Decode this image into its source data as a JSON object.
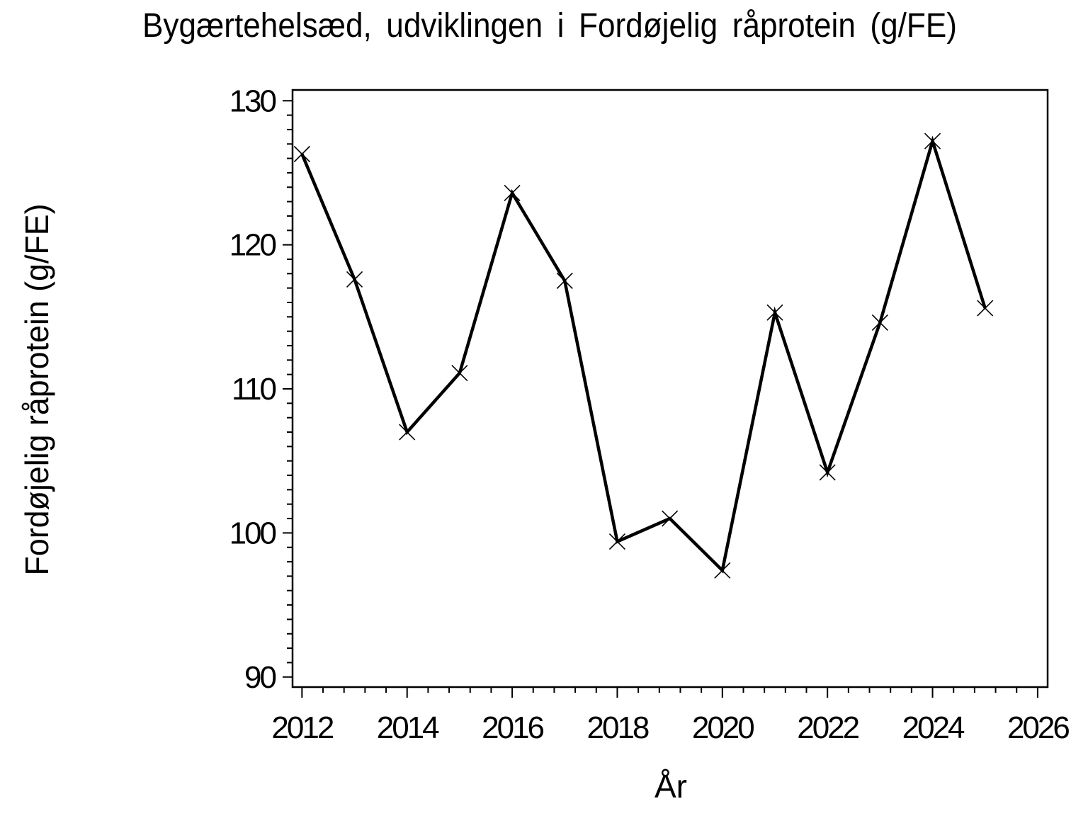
{
  "page": {
    "background": "#ffffff",
    "line_color": "#000000",
    "text_color": "#000000"
  },
  "chart_data": {
    "type": "line",
    "title": "Bygærtehelsæd,  udviklingen  i  Fordøjelig  råprotein  (g/FE)",
    "xlabel": "År",
    "ylabel": "Fordøjelig  råprotein  (g/FE)",
    "x": [
      2012,
      2013,
      2014,
      2015,
      2016,
      2017,
      2018,
      2019,
      2020,
      2021,
      2022,
      2023,
      2024,
      2025
    ],
    "values": [
      126.3,
      117.6,
      107.0,
      111.1,
      123.6,
      117.5,
      99.4,
      101.0,
      97.4,
      115.3,
      104.2,
      114.6,
      127.2,
      115.6
    ],
    "series_name": "Fordøjelig råprotein (g/FE)",
    "marker": "x",
    "xlim": [
      2011.82,
      2026.19
    ],
    "ylim": [
      89.3,
      130.75
    ],
    "x_major_ticks": [
      2012,
      2014,
      2016,
      2018,
      2020,
      2022,
      2024,
      2026
    ],
    "x_minor_step": 0.4,
    "y_major_ticks": [
      90,
      100,
      110,
      120,
      130
    ],
    "y_minor_step": 1,
    "grid": false,
    "legend": null
  }
}
